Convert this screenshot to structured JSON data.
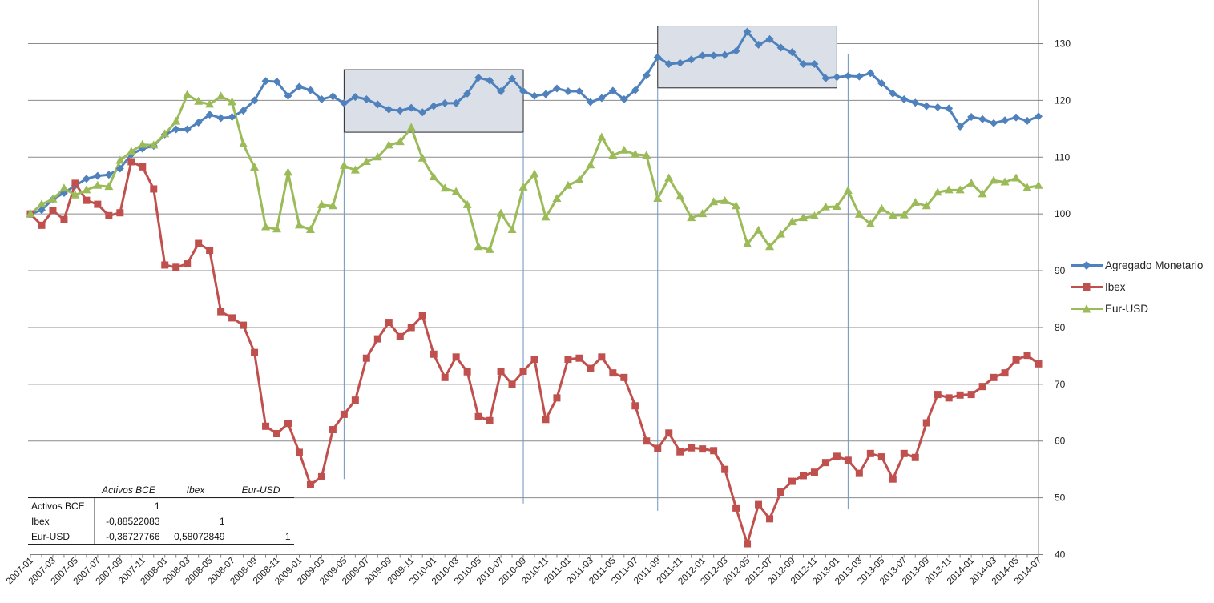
{
  "chart_data": {
    "type": "line",
    "title": "",
    "xlabel": "",
    "ylabel": "",
    "ylim": [
      40,
      130
    ],
    "y_ticks": [
      40,
      50,
      60,
      70,
      80,
      90,
      100,
      110,
      120,
      130
    ],
    "x_tick_labels": [
      "2007-01",
      "2007-03",
      "2007-05",
      "2007-07",
      "2007-09",
      "2007-11",
      "2008-01",
      "2008-03",
      "2008-05",
      "2008-07",
      "2008-09",
      "2008-11",
      "2009-01",
      "2009-03",
      "2009-05",
      "2009-07",
      "2009-09",
      "2009-11",
      "2010-01",
      "2010-03",
      "2010-05",
      "2010-07",
      "2010-09",
      "2010-11",
      "2011-01",
      "2011-03",
      "2011-05",
      "2011-07",
      "2011-09",
      "2011-11",
      "2012-01",
      "2012-03",
      "2012-05",
      "2012-07",
      "2012-09",
      "2012-11",
      "2013-01",
      "2013-03",
      "2013-05",
      "2013-07",
      "2013-09",
      "2013-11",
      "2014-01",
      "2014-03",
      "2014-05",
      "2014-07"
    ],
    "x_start": "2007-01",
    "x_end": "2014-07",
    "legend_position": "right",
    "grid": "horizontal",
    "series": [
      {
        "name": "Agregado Monetario",
        "color": "#4f81bd",
        "marker": "diamond",
        "values": [
          100,
          100.7,
          102.6,
          103.7,
          105,
          106.2,
          106.7,
          106.9,
          108,
          110.5,
          111.5,
          112,
          114,
          114.9,
          114.9,
          116.1,
          117.5,
          116.9,
          117.1,
          118.2,
          120,
          123.4,
          123.3,
          120.8,
          122.4,
          121.8,
          120.2,
          120.7,
          119.5,
          120.6,
          120.2,
          119.3,
          118.4,
          118.2,
          118.7,
          117.9,
          119,
          119.5,
          119.5,
          121.2,
          124,
          123.5,
          121.6,
          123.8,
          121.6,
          120.8,
          121.1,
          122.1,
          121.6,
          121.6,
          119.7,
          120.4,
          121.7,
          120.2,
          121.8,
          124.4,
          127.6,
          126.4,
          126.6,
          127.2,
          127.9,
          127.9,
          128,
          128.7,
          132.1,
          129.8,
          130.8,
          129.3,
          128.5,
          126.4,
          126.4,
          123.9,
          124.1,
          124.3,
          124.2,
          124.8,
          123,
          121.2,
          120.2,
          119.6,
          119,
          118.8,
          118.6,
          115.4,
          117.1,
          116.7,
          116,
          116.5,
          117,
          116.4,
          117.2
        ]
      },
      {
        "name": "Ibex",
        "color": "#c0504d",
        "marker": "square",
        "values": [
          100,
          98,
          100.6,
          99,
          105.4,
          102.4,
          101.7,
          99.7,
          100.2,
          109.2,
          108.3,
          104.4,
          91,
          90.6,
          91.2,
          94.8,
          93.6,
          82.8,
          81.7,
          80.4,
          75.6,
          62.6,
          61.3,
          63.1,
          58,
          52.3,
          53.7,
          62,
          64.7,
          67.2,
          74.6,
          78,
          80.9,
          78.4,
          80,
          82.1,
          75.3,
          71.2,
          74.8,
          72.2,
          64.3,
          63.6,
          72.3,
          70,
          72.3,
          74.4,
          63.8,
          67.6,
          74.4,
          74.6,
          72.8,
          74.8,
          72,
          71.2,
          66.2,
          60,
          58.7,
          61.4,
          58.1,
          58.8,
          58.6,
          58.3,
          55,
          48.2,
          41.9,
          48.8,
          46.3,
          51,
          52.9,
          53.9,
          54.5,
          56.2,
          57.3,
          56.6,
          54.3,
          57.8,
          57.2,
          53.3,
          57.8,
          57.1,
          63.2,
          68.2,
          67.6,
          68.1,
          68.2,
          69.6,
          71.2,
          72,
          74.3,
          75.1,
          73.6
        ]
      },
      {
        "name": "Eur-USD",
        "color": "#9bbb59",
        "marker": "triangle",
        "values": [
          100,
          101.7,
          102.6,
          104.5,
          103.3,
          104.2,
          105,
          104.8,
          109.4,
          111,
          112.2,
          112.1,
          114.1,
          116.3,
          121,
          119.8,
          119.3,
          120.7,
          119.7,
          112.3,
          108.2,
          97.7,
          97.3,
          107.3,
          98,
          97.2,
          101.6,
          101.4,
          108.5,
          107.7,
          109.2,
          110,
          112.1,
          112.7,
          115.2,
          109.8,
          106.5,
          104.5,
          103.9,
          101.6,
          94.2,
          93.7,
          100.1,
          97.2,
          104.7,
          107,
          99.4,
          102.7,
          105,
          106,
          108.6,
          113.5,
          110.3,
          111.2,
          110.5,
          110.3,
          102.7,
          106.3,
          103.1,
          99.3,
          100,
          102.1,
          102.3,
          101.4,
          94.7,
          97.1,
          94.2,
          96.4,
          98.6,
          99.3,
          99.6,
          101.2,
          101.3,
          104.1,
          99.9,
          98.2,
          100.9,
          99.7,
          99.8,
          102,
          101.4,
          103.8,
          104.2,
          104.2,
          105.4,
          103.5,
          105.9,
          105.6,
          106.3,
          104.6,
          105
        ]
      }
    ],
    "annotations": [
      {
        "type": "box",
        "x_start": "2009-05",
        "x_end": "2010-09",
        "y_low": 114.4,
        "y_high": 125.4
      },
      {
        "type": "box",
        "x_start": "2011-09",
        "x_end": "2013-01",
        "y_low": 122.2,
        "y_high": 133.1
      },
      {
        "type": "vline",
        "x": "2009-05",
        "y_low": 53.3,
        "y_high": 114.4
      },
      {
        "type": "vline",
        "x": "2010-09",
        "y_low": 49,
        "y_high": 114.4
      },
      {
        "type": "vline",
        "x": "2011-09",
        "y_low": 47.7,
        "y_high": 122.2
      },
      {
        "type": "vline",
        "x": "2013-02",
        "y_low": 48.1,
        "y_high": 128.1
      }
    ]
  },
  "correlation_table": {
    "columns": [
      "Activos BCE",
      "Ibex",
      "Eur-USD"
    ],
    "rows": [
      {
        "label": "Activos BCE",
        "values": [
          "1",
          "",
          ""
        ]
      },
      {
        "label": "Ibex",
        "values": [
          "-0,88522083",
          "1",
          ""
        ]
      },
      {
        "label": "Eur-USD",
        "values": [
          "-0,36727766",
          "0,58072849",
          "1"
        ]
      }
    ]
  }
}
